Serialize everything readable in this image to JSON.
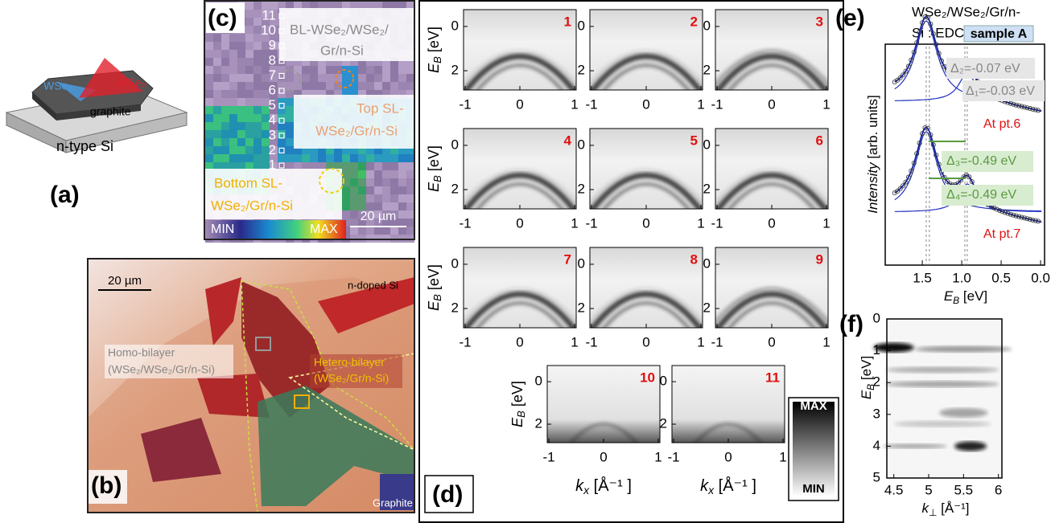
{
  "panel_a": {
    "label": "(a)",
    "layer_blue": "WSe₂",
    "layer_red": "WSe₂",
    "graphite": "graphite",
    "substrate": "n-type Si"
  },
  "panel_b": {
    "label": "(b)",
    "scale_bar": "20 µm",
    "substrate": "n-doped Si",
    "homo": [
      "Homo-bilayer",
      "(WSe₂/WSe₂/Gr/n-Si)"
    ],
    "hetero": [
      "Hetero-bilayer",
      "(WSe₂/Gr/n-Si)"
    ],
    "graphite": "Graphite"
  },
  "panel_c": {
    "label": "(c)",
    "points": [
      1,
      2,
      3,
      4,
      5,
      6,
      7,
      8,
      9,
      10,
      11
    ],
    "bilayer": [
      "BL-WSe₂/WSe₂/",
      "Gr/n-Si"
    ],
    "top": [
      "Top SL-",
      "WSe₂/Gr/n-Si"
    ],
    "bottom": [
      "Bottom SL-",
      "WSe₂/Gr/n-Si"
    ],
    "min": "MIN",
    "max": "MAX",
    "scale_bar": "20 µm"
  },
  "panel_d": {
    "label": "(d)",
    "panels": [
      1,
      2,
      3,
      4,
      5,
      6,
      7,
      8,
      9,
      10,
      11
    ],
    "xlim": [
      -1.03,
      1.03
    ],
    "ylim": [
      -0.76,
      2.87
    ],
    "xticks": [
      -1,
      0,
      1
    ],
    "yticks": [
      0,
      2
    ],
    "ylabel": {
      "main": "E",
      "sub": "B",
      "unit": " [eV]"
    },
    "xlabel": {
      "main": "k",
      "sub": "x",
      "unit": " [Å⁻¹ ]"
    },
    "colorbar": {
      "max": "MAX",
      "min": "MIN"
    }
  },
  "panel_e": {
    "label": "(e)",
    "title": [
      "WSe₂/WSe₂/Gr/n-",
      "Si : EDC"
    ],
    "sample": "sample A",
    "deltas": [
      "Δ₂=-0.07 eV",
      "Δ₁=-0.03 eV",
      "Δ₃=-0.49 eV",
      "Δ₄=-0.49 eV"
    ],
    "point_labels": [
      "At pt.6",
      "At pt.7"
    ],
    "ylabel": {
      "main": "Intensity",
      "unit": " [arb. units]"
    },
    "xlabel": {
      "main": "E",
      "sub": "B",
      "unit": " [eV]"
    },
    "xlim": [
      1.97,
      -0.05
    ],
    "xticks": [
      1.5,
      {
        "value": 1,
        "label": "1.0"
      },
      0.5,
      {
        "value": 0,
        "label": "0.0"
      }
    ]
  },
  "panel_f": {
    "label": "(f)",
    "ylim": [
      0,
      5
    ],
    "yticks": [
      0,
      1,
      2,
      3,
      4,
      5
    ],
    "xlim": [
      4.4,
      6.05
    ],
    "xticks": [
      4.5,
      5,
      5.5,
      6
    ],
    "ylabel": {
      "main": "E",
      "sub": "B",
      "unit": " [eV]"
    },
    "xlabel": {
      "main": "k",
      "sub": "⊥",
      "unit": " [Å⁻¹]"
    }
  }
}
